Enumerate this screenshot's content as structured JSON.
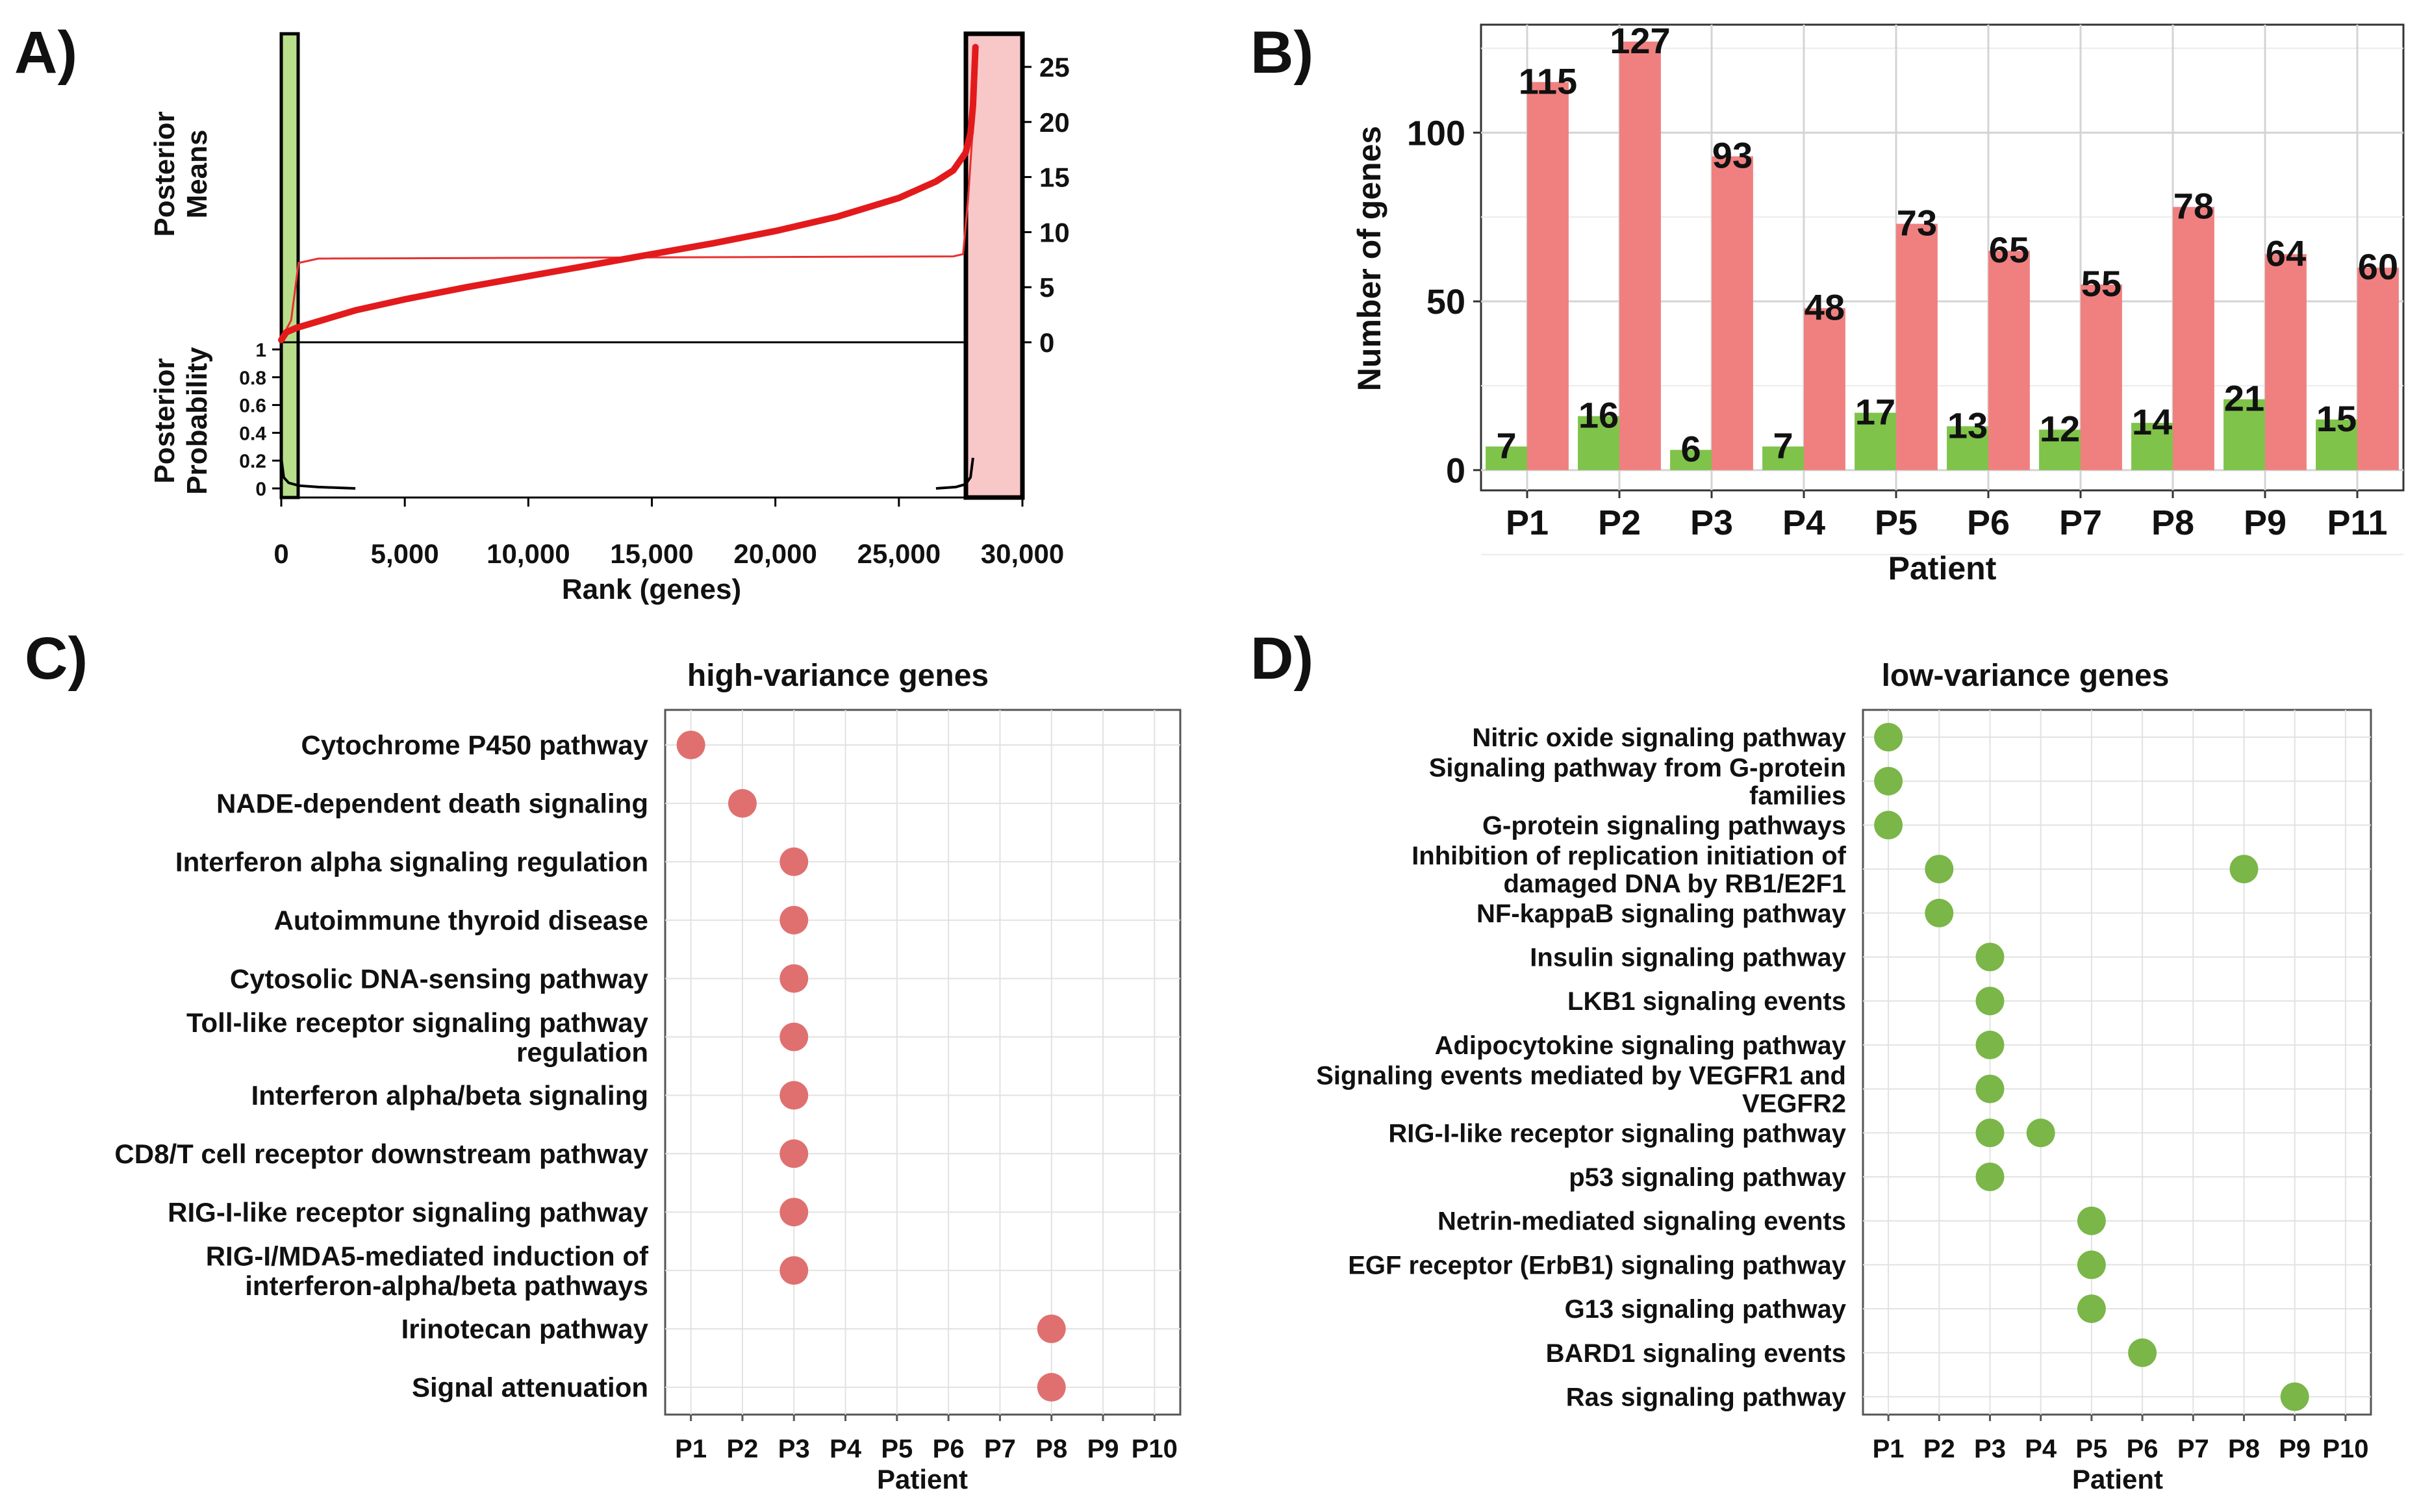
{
  "chart_data": [
    {
      "panel": "A)",
      "type": "line",
      "xlabel": "Rank (genes)",
      "x_ticks": [
        "0",
        "5,000",
        "10,000",
        "15,000",
        "20,000",
        "25,000",
        "30,000"
      ],
      "x_tick_values": [
        0,
        5000,
        10000,
        15000,
        20000,
        25000,
        30000
      ],
      "xlim": [
        0,
        30000
      ],
      "top": {
        "ylabel_lines": [
          "Posterior",
          "Means"
        ],
        "y_ticks_right": [
          "25",
          "20",
          "15",
          "10",
          "5",
          "0"
        ],
        "y_tick_values": [
          25,
          20,
          15,
          10,
          5,
          0
        ],
        "ylim": [
          0,
          28
        ],
        "posterior_means": [
          [
            0,
            0.2
          ],
          [
            200,
            0.9
          ],
          [
            600,
            1.3
          ],
          [
            1500,
            1.9
          ],
          [
            3000,
            2.9
          ],
          [
            5000,
            3.9
          ],
          [
            7500,
            5.0
          ],
          [
            10000,
            6.0
          ],
          [
            12500,
            7.0
          ],
          [
            15000,
            8.0
          ],
          [
            17500,
            9.0
          ],
          [
            20000,
            10.1
          ],
          [
            22500,
            11.4
          ],
          [
            25000,
            13.1
          ],
          [
            26500,
            14.6
          ],
          [
            27200,
            15.6
          ],
          [
            27700,
            17.2
          ],
          [
            27900,
            19.0
          ],
          [
            28000,
            21.5
          ],
          [
            28100,
            26.8
          ]
        ],
        "threshold_line": [
          [
            0,
            0.3
          ],
          [
            400,
            2.0
          ],
          [
            700,
            7.2
          ],
          [
            1500,
            7.6
          ],
          [
            27200,
            7.8
          ],
          [
            27600,
            8.0
          ],
          [
            27800,
            13.0
          ],
          [
            27950,
            18.0
          ],
          [
            28000,
            19.5
          ]
        ],
        "low_variance_region": [
          0,
          700
        ],
        "high_variance_region": [
          27700,
          30000
        ]
      },
      "bottom": {
        "ylabel_lines": [
          "Posterior",
          "Probability"
        ],
        "y_ticks_left": [
          "1",
          "0.8",
          "0.6",
          "0.4",
          "0.2",
          "0"
        ],
        "y_tick_values": [
          1,
          0.8,
          0.6,
          0.4,
          0.2,
          0
        ],
        "ylim": [
          0,
          1.05
        ],
        "probability_low": [
          [
            0,
            0.22
          ],
          [
            100,
            0.08
          ],
          [
            300,
            0.04
          ],
          [
            700,
            0.02
          ],
          [
            1500,
            0.01
          ],
          [
            3000,
            0.0
          ]
        ],
        "probability_high": [
          [
            26500,
            0.0
          ],
          [
            27300,
            0.01
          ],
          [
            27700,
            0.03
          ],
          [
            27900,
            0.08
          ],
          [
            28000,
            0.22
          ]
        ]
      }
    },
    {
      "panel": "B)",
      "type": "bar",
      "xlabel": "Patient",
      "ylabel": "Number of genes",
      "categories": [
        "P1",
        "P2",
        "P3",
        "P4",
        "P5",
        "P6",
        "P7",
        "P8",
        "P9",
        "P11"
      ],
      "series": [
        {
          "name": "low-variance genes",
          "color": "#7fc34a",
          "values": [
            7,
            16,
            6,
            7,
            17,
            13,
            12,
            14,
            21,
            15
          ]
        },
        {
          "name": "high-variance genes",
          "color": "#f08080",
          "values": [
            115,
            127,
            93,
            48,
            73,
            65,
            55,
            78,
            64,
            60
          ]
        }
      ],
      "y_ticks": [
        0,
        50,
        100
      ],
      "ylim": [
        -6,
        132
      ]
    },
    {
      "panel": "C)",
      "type": "scatter",
      "title": "high-variance genes",
      "xlabel": "Patient",
      "categories": [
        "P1",
        "P2",
        "P3",
        "P4",
        "P5",
        "P6",
        "P7",
        "P8",
        "P9",
        "P10"
      ],
      "color": "#e07070",
      "pathways": [
        "Cytochrome P450 pathway",
        "NADE-dependent death signaling",
        "Interferon alpha signaling regulation",
        "Autoimmune thyroid disease",
        "Cytosolic DNA-sensing pathway",
        [
          "Toll-like receptor signaling pathway",
          "regulation"
        ],
        "Interferon alpha/beta signaling",
        "CD8/T cell receptor downstream pathway",
        "RIG-I-like receptor signaling pathway",
        [
          "RIG-I/MDA5-mediated induction of",
          "interferon-alpha/beta pathways"
        ],
        "Irinotecan pathway",
        "Signal attenuation"
      ],
      "points": [
        [
          0,
          "P1"
        ],
        [
          1,
          "P2"
        ],
        [
          2,
          "P3"
        ],
        [
          3,
          "P3"
        ],
        [
          4,
          "P3"
        ],
        [
          5,
          "P3"
        ],
        [
          6,
          "P3"
        ],
        [
          7,
          "P3"
        ],
        [
          8,
          "P3"
        ],
        [
          9,
          "P3"
        ],
        [
          10,
          "P8"
        ],
        [
          11,
          "P8"
        ]
      ]
    },
    {
      "panel": "D)",
      "type": "scatter",
      "title": "low-variance genes",
      "xlabel": "Patient",
      "categories": [
        "P1",
        "P2",
        "P3",
        "P4",
        "P5",
        "P6",
        "P7",
        "P8",
        "P9",
        "P10"
      ],
      "color": "#7ab648",
      "pathways": [
        "Nitric oxide signaling pathway",
        [
          "Signaling pathway from G-protein",
          "families"
        ],
        "G-protein signaling pathways",
        [
          "Inhibition of replication initiation of",
          "damaged DNA by RB1/E2F1"
        ],
        "NF-kappaB signaling pathway",
        "Insulin signaling pathway",
        "LKB1 signaling events",
        "Adipocytokine signaling pathway",
        [
          "Signaling events mediated by VEGFR1 and",
          "VEGFR2"
        ],
        "RIG-I-like receptor signaling pathway",
        "p53 signaling pathway",
        "Netrin-mediated signaling events",
        "EGF receptor (ErbB1) signaling pathway",
        "G13 signaling pathway",
        "BARD1 signaling events",
        "Ras signaling pathway"
      ],
      "points": [
        [
          0,
          "P1"
        ],
        [
          1,
          "P1"
        ],
        [
          2,
          "P1"
        ],
        [
          3,
          "P2"
        ],
        [
          3,
          "P8"
        ],
        [
          4,
          "P2"
        ],
        [
          5,
          "P3"
        ],
        [
          6,
          "P3"
        ],
        [
          7,
          "P3"
        ],
        [
          8,
          "P3"
        ],
        [
          9,
          "P3"
        ],
        [
          9,
          "P4"
        ],
        [
          10,
          "P3"
        ],
        [
          11,
          "P5"
        ],
        [
          12,
          "P5"
        ],
        [
          13,
          "P5"
        ],
        [
          14,
          "P6"
        ],
        [
          15,
          "P9"
        ]
      ]
    }
  ]
}
